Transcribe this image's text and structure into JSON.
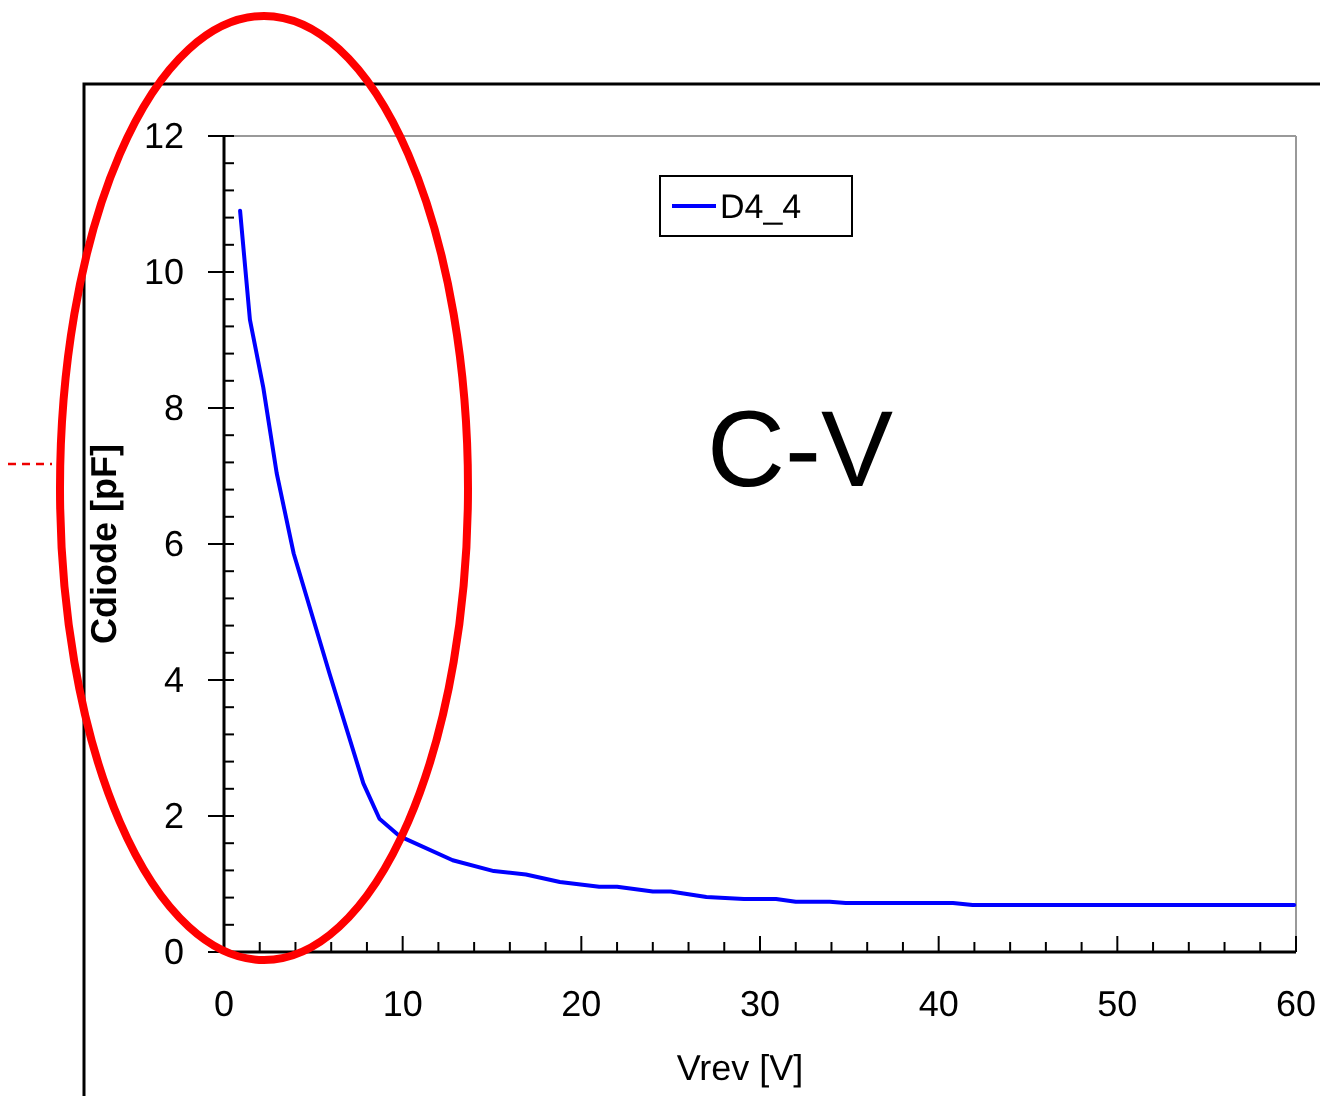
{
  "chart_data": {
    "type": "line",
    "xlabel": "Vrev [V]",
    "ylabel": "Cdiode [pF]",
    "annotations": [
      "C-V"
    ],
    "series": [
      {
        "name": "D4_4",
        "color": "#0000ff",
        "x": [
          0.9,
          1.45,
          2.2,
          2.95,
          3.9,
          5.9,
          7.8,
          8.7,
          9.85,
          12.8,
          15.1,
          16.9,
          18.8,
          21,
          22,
          24,
          25,
          27,
          29.1,
          30.9,
          32,
          33.9,
          34.8,
          40.8,
          41.9,
          59.9
        ],
        "values": [
          10.9,
          9.3,
          8.3,
          7.04,
          5.86,
          4.1,
          2.48,
          1.96,
          1.7,
          1.35,
          1.19,
          1.14,
          1.03,
          0.96,
          0.96,
          0.89,
          0.89,
          0.81,
          0.78,
          0.78,
          0.74,
          0.74,
          0.72,
          0.72,
          0.69,
          0.69
        ]
      }
    ],
    "xlim": [
      0,
      60
    ],
    "ylim": [
      0,
      12
    ],
    "xticks": [
      0,
      {
        "value": 2,
        "label": null
      },
      {
        "value": 4,
        "label": null
      },
      {
        "value": 6,
        "label": null
      },
      {
        "value": 8,
        "label": null
      },
      10,
      {
        "value": 12,
        "label": null
      },
      {
        "value": 14,
        "label": null
      },
      {
        "value": 16,
        "label": null
      },
      {
        "value": 18,
        "label": null
      },
      20,
      {
        "value": 22,
        "label": null
      },
      {
        "value": 24,
        "label": null
      },
      {
        "value": 26,
        "label": null
      },
      {
        "value": 28,
        "label": null
      },
      30,
      {
        "value": 32,
        "label": null
      },
      {
        "value": 34,
        "label": null
      },
      {
        "value": 36,
        "label": null
      },
      {
        "value": 38,
        "label": null
      },
      40,
      {
        "value": 42,
        "label": null
      },
      {
        "value": 44,
        "label": null
      },
      {
        "value": 46,
        "label": null
      },
      {
        "value": 48,
        "label": null
      },
      50,
      {
        "value": 52,
        "label": null
      },
      {
        "value": 54,
        "label": null
      },
      {
        "value": 56,
        "label": null
      },
      {
        "value": 58,
        "label": null
      },
      60
    ],
    "yticks": [
      0,
      {
        "value": 0.4,
        "label": null
      },
      {
        "value": 0.8,
        "label": null
      },
      {
        "value": 1.2,
        "label": null
      },
      {
        "value": 1.6,
        "label": null
      },
      2,
      {
        "value": 2.4,
        "label": null
      },
      {
        "value": 2.8,
        "label": null
      },
      {
        "value": 3.2,
        "label": null
      },
      {
        "value": 3.6,
        "label": null
      },
      4,
      {
        "value": 4.4,
        "label": null
      },
      {
        "value": 4.8,
        "label": null
      },
      {
        "value": 5.2,
        "label": null
      },
      {
        "value": 5.6,
        "label": null
      },
      6,
      {
        "value": 6.4,
        "label": null
      },
      {
        "value": 6.8,
        "label": null
      },
      {
        "value": 7.2,
        "label": null
      },
      {
        "value": 7.6,
        "label": null
      },
      8,
      {
        "value": 8.4,
        "label": null
      },
      {
        "value": 8.8,
        "label": null
      },
      {
        "value": 9.2,
        "label": null
      },
      {
        "value": 9.6,
        "label": null
      },
      10,
      {
        "value": 10.4,
        "label": null
      },
      {
        "value": 10.8,
        "label": null
      },
      {
        "value": 11.2,
        "label": null
      },
      {
        "value": 11.6,
        "label": null
      },
      12
    ],
    "grid": false,
    "legend": "top",
    "marker": "none",
    "line_style": "solid"
  }
}
